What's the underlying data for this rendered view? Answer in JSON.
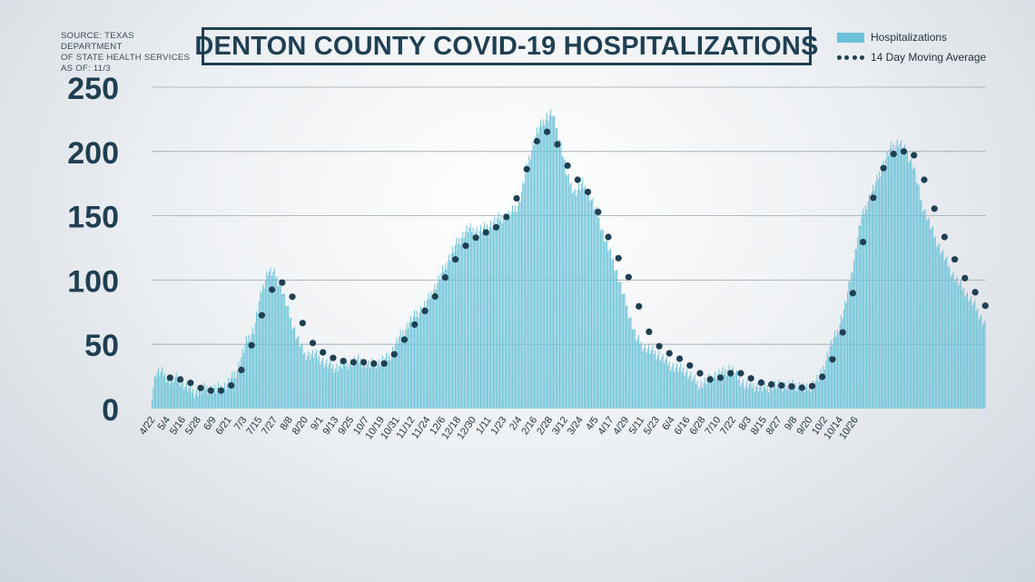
{
  "source": {
    "lines": [
      "SOURCE: TEXAS DEPARTMENT",
      "OF STATE HEALTH SERVICES",
      "AS OF: 11/3"
    ]
  },
  "title": "DENTON COUNTY COVID-19 HOSPITALIZATIONS",
  "legend": {
    "bars_label": "Hospitalizations",
    "line_label": "14 Day Moving Average"
  },
  "colors": {
    "bar": "#6cc3d9",
    "line": "#1f3f52",
    "title": "#1f3f52",
    "grid": "#9aa6b0"
  },
  "chart_data": {
    "type": "bar",
    "title": "DENTON COUNTY COVID-19 HOSPITALIZATIONS",
    "xlabel": "",
    "ylabel": "",
    "ylim": [
      0,
      250
    ],
    "y_ticks": [
      0,
      50,
      100,
      150,
      200,
      250
    ],
    "grid": true,
    "legend_position": "top-right",
    "x_tick_labels": [
      "4/22",
      "5/4",
      "5/16",
      "5/28",
      "6/9",
      "6/21",
      "7/3",
      "7/15",
      "7/27",
      "8/8",
      "8/20",
      "9/1",
      "9/13",
      "9/25",
      "10/7",
      "10/19",
      "10/31",
      "11/12",
      "11/24",
      "12/6",
      "12/18",
      "12/30",
      "1/11",
      "1/23",
      "2/4",
      "2/16",
      "2/28",
      "3/12",
      "3/24",
      "4/5",
      "4/17",
      "4/29",
      "5/11",
      "5/23",
      "6/4",
      "6/16",
      "6/28",
      "7/10",
      "7/22",
      "8/3",
      "8/15",
      "8/27",
      "9/8",
      "9/20",
      "10/2",
      "10/14",
      "10/26"
    ],
    "series": [
      {
        "name": "Hospitalizations",
        "type": "bar",
        "anchors": [
          [
            0,
            12
          ],
          [
            3,
            28
          ],
          [
            8,
            28
          ],
          [
            14,
            22
          ],
          [
            20,
            24
          ],
          [
            26,
            17
          ],
          [
            34,
            12
          ],
          [
            42,
            16
          ],
          [
            50,
            15
          ],
          [
            58,
            18
          ],
          [
            66,
            28
          ],
          [
            74,
            52
          ],
          [
            80,
            62
          ],
          [
            86,
            92
          ],
          [
            91,
            107
          ],
          [
            96,
            105
          ],
          [
            101,
            96
          ],
          [
            108,
            72
          ],
          [
            114,
            55
          ],
          [
            120,
            42
          ],
          [
            128,
            42
          ],
          [
            136,
            35
          ],
          [
            144,
            32
          ],
          [
            154,
            35
          ],
          [
            162,
            38
          ],
          [
            170,
            34
          ],
          [
            178,
            36
          ],
          [
            186,
            40
          ],
          [
            194,
            55
          ],
          [
            204,
            70
          ],
          [
            214,
            80
          ],
          [
            224,
            98
          ],
          [
            232,
            115
          ],
          [
            240,
            130
          ],
          [
            248,
            140
          ],
          [
            256,
            138
          ],
          [
            264,
            142
          ],
          [
            272,
            148
          ],
          [
            280,
            150
          ],
          [
            288,
            160
          ],
          [
            296,
            195
          ],
          [
            302,
            215
          ],
          [
            308,
            225
          ],
          [
            314,
            230
          ],
          [
            320,
            210
          ],
          [
            326,
            180
          ],
          [
            332,
            168
          ],
          [
            338,
            175
          ],
          [
            344,
            165
          ],
          [
            350,
            150
          ],
          [
            356,
            130
          ],
          [
            362,
            115
          ],
          [
            368,
            95
          ],
          [
            374,
            75
          ],
          [
            380,
            55
          ],
          [
            386,
            48
          ],
          [
            392,
            45
          ],
          [
            398,
            42
          ],
          [
            404,
            36
          ],
          [
            410,
            32
          ],
          [
            418,
            30
          ],
          [
            424,
            24
          ],
          [
            430,
            18
          ],
          [
            436,
            22
          ],
          [
            442,
            26
          ],
          [
            448,
            28
          ],
          [
            454,
            32
          ],
          [
            460,
            24
          ],
          [
            466,
            18
          ],
          [
            472,
            18
          ],
          [
            480,
            16
          ],
          [
            490,
            18
          ],
          [
            500,
            18
          ],
          [
            508,
            18
          ],
          [
            514,
            15
          ],
          [
            520,
            20
          ],
          [
            526,
            28
          ],
          [
            532,
            48
          ],
          [
            538,
            60
          ],
          [
            544,
            80
          ],
          [
            550,
            110
          ],
          [
            556,
            145
          ],
          [
            562,
            162
          ],
          [
            568,
            175
          ],
          [
            574,
            190
          ],
          [
            580,
            203
          ],
          [
            586,
            207
          ],
          [
            592,
            200
          ],
          [
            598,
            188
          ],
          [
            604,
            160
          ],
          [
            610,
            145
          ],
          [
            616,
            130
          ],
          [
            622,
            118
          ],
          [
            628,
            105
          ],
          [
            634,
            97
          ],
          [
            640,
            88
          ],
          [
            646,
            80
          ],
          [
            650,
            72
          ],
          [
            654,
            65
          ]
        ]
      },
      {
        "name": "14 Day Moving Average",
        "type": "line",
        "anchors": [
          [
            0,
            null
          ],
          [
            14,
            24
          ],
          [
            26,
            22
          ],
          [
            38,
            16
          ],
          [
            46,
            14
          ],
          [
            54,
            14
          ],
          [
            62,
            18
          ],
          [
            72,
            33
          ],
          [
            82,
            60
          ],
          [
            90,
            85
          ],
          [
            98,
            100
          ],
          [
            106,
            96
          ],
          [
            114,
            78
          ],
          [
            122,
            55
          ],
          [
            132,
            45
          ],
          [
            140,
            40
          ],
          [
            150,
            37
          ],
          [
            158,
            36
          ],
          [
            166,
            36
          ],
          [
            174,
            35
          ],
          [
            182,
            35
          ],
          [
            192,
            44
          ],
          [
            202,
            60
          ],
          [
            214,
            76
          ],
          [
            224,
            90
          ],
          [
            234,
            110
          ],
          [
            244,
            125
          ],
          [
            254,
            133
          ],
          [
            264,
            138
          ],
          [
            274,
            143
          ],
          [
            284,
            158
          ],
          [
            292,
            180
          ],
          [
            300,
            205
          ],
          [
            308,
            217
          ],
          [
            316,
            210
          ],
          [
            324,
            192
          ],
          [
            332,
            180
          ],
          [
            340,
            172
          ],
          [
            348,
            158
          ],
          [
            356,
            138
          ],
          [
            364,
            120
          ],
          [
            372,
            108
          ],
          [
            380,
            85
          ],
          [
            388,
            63
          ],
          [
            396,
            50
          ],
          [
            404,
            44
          ],
          [
            412,
            40
          ],
          [
            420,
            35
          ],
          [
            428,
            29
          ],
          [
            436,
            23
          ],
          [
            442,
            22
          ],
          [
            450,
            26
          ],
          [
            458,
            29
          ],
          [
            466,
            26
          ],
          [
            474,
            21
          ],
          [
            484,
            19
          ],
          [
            494,
            18
          ],
          [
            504,
            17
          ],
          [
            512,
            16
          ],
          [
            520,
            18
          ],
          [
            528,
            27
          ],
          [
            536,
            42
          ],
          [
            544,
            65
          ],
          [
            552,
            98
          ],
          [
            560,
            140
          ],
          [
            568,
            172
          ],
          [
            576,
            192
          ],
          [
            584,
            200
          ],
          [
            592,
            200
          ],
          [
            600,
            196
          ],
          [
            608,
            172
          ],
          [
            616,
            150
          ],
          [
            624,
            128
          ],
          [
            632,
            112
          ],
          [
            640,
            98
          ],
          [
            648,
            88
          ],
          [
            654,
            80
          ]
        ]
      }
    ]
  }
}
